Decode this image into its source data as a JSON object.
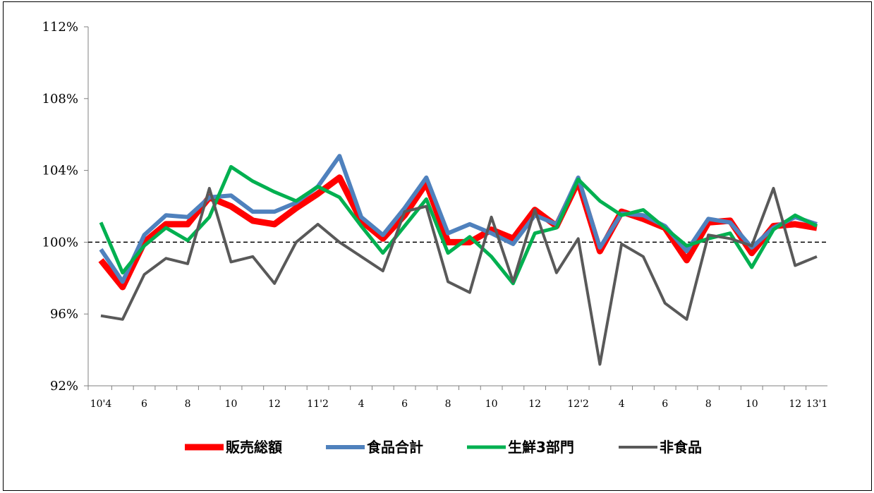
{
  "chart_data": {
    "type": "line",
    "title": "",
    "xlabel": "",
    "ylabel": "",
    "ylim": [
      92,
      112
    ],
    "yticks": [
      92,
      96,
      100,
      104,
      108,
      112
    ],
    "ytick_labels": [
      "92%",
      "96%",
      "100%",
      "104%",
      "108%",
      "112%"
    ],
    "reference_line": {
      "value": 100,
      "style": "dashed"
    },
    "grid": false,
    "legend_position": "bottom",
    "x_tick_labels": [
      "10'4",
      "",
      "6",
      "",
      "8",
      "",
      "10",
      "",
      "12",
      "",
      "11'2",
      "",
      "4",
      "",
      "6",
      "",
      "8",
      "",
      "10",
      "",
      "12",
      "",
      "12'2",
      "",
      "4",
      "",
      "6",
      "",
      "8",
      "",
      "10",
      "",
      "12",
      "13'1"
    ],
    "series": [
      {
        "name": "販売総額",
        "color": "#ff0000",
        "values": [
          99.0,
          97.5,
          100.0,
          101.0,
          101.0,
          102.5,
          102.0,
          101.2,
          101.0,
          101.9,
          102.7,
          103.6,
          101.2,
          100.2,
          101.5,
          103.3,
          100.0,
          100.0,
          100.7,
          100.2,
          101.8,
          100.9,
          103.4,
          99.5,
          101.7,
          101.3,
          100.8,
          99.0,
          101.1,
          101.2,
          99.4,
          100.9,
          101.0,
          100.8
        ]
      },
      {
        "name": "食品合計",
        "color": "#4f81bd",
        "values": [
          99.6,
          97.8,
          100.4,
          101.5,
          101.4,
          102.5,
          102.6,
          101.7,
          101.7,
          102.2,
          103.1,
          104.8,
          101.4,
          100.4,
          101.9,
          103.6,
          100.5,
          101.0,
          100.5,
          99.9,
          101.5,
          101.0,
          103.6,
          99.7,
          101.6,
          101.5,
          100.9,
          99.5,
          101.3,
          101.1,
          99.7,
          100.8,
          101.4,
          101.0
        ]
      },
      {
        "name": "生鮮3部門",
        "color": "#00b050",
        "values": [
          101.1,
          98.3,
          99.8,
          100.8,
          100.1,
          101.4,
          104.2,
          103.4,
          102.8,
          102.3,
          103.1,
          102.5,
          100.9,
          99.4,
          100.9,
          102.4,
          99.4,
          100.3,
          99.2,
          97.7,
          100.5,
          100.8,
          103.5,
          102.3,
          101.5,
          101.8,
          100.8,
          99.8,
          100.2,
          100.5,
          98.6,
          100.7,
          101.5,
          100.9
        ]
      },
      {
        "name": "非食品",
        "color": "#595959",
        "values": [
          95.9,
          95.7,
          98.2,
          99.1,
          98.8,
          103.0,
          98.9,
          99.2,
          97.7,
          100.0,
          101.0,
          100.0,
          99.2,
          98.4,
          101.7,
          102.0,
          97.8,
          97.2,
          101.4,
          97.8,
          101.8,
          98.3,
          100.2,
          93.2,
          99.9,
          99.2,
          96.6,
          95.7,
          100.4,
          100.2,
          99.8,
          103.0,
          98.7,
          99.2
        ]
      }
    ]
  }
}
